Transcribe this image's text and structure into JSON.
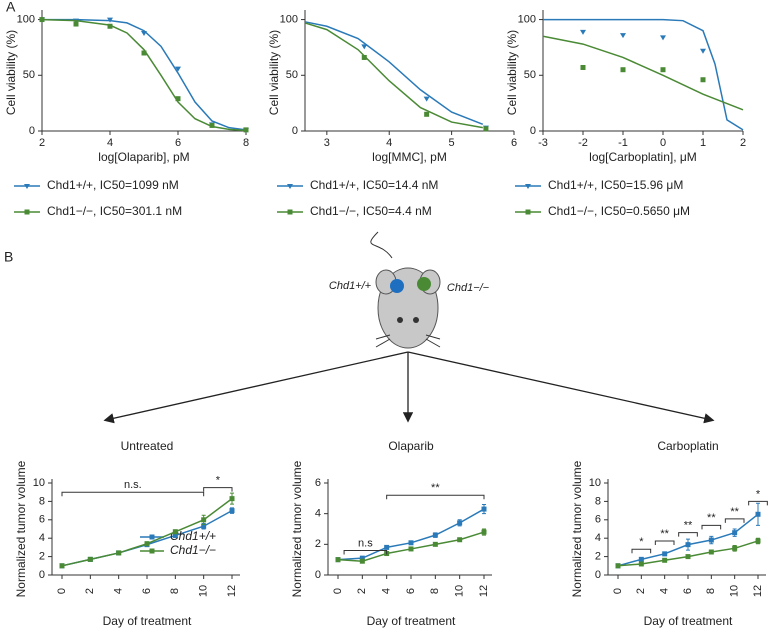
{
  "panels": [
    "A",
    "B"
  ],
  "mouse": {
    "left_label": "Chd1+/+",
    "right_label": "Chd1−/−"
  },
  "chart_data": [
    {
      "type": "line",
      "x_label": "log[Olaparib], pM",
      "y_label": "Cell viability (%)",
      "xlim": [
        2,
        8
      ],
      "xticks": [
        2,
        4,
        6,
        8
      ],
      "ylim": [
        0,
        105
      ],
      "yticks": [
        0,
        50,
        100
      ],
      "legend": "below",
      "series": [
        {
          "name": "Chd1+/+, IC50=1099 nM",
          "color": "#2a7ab9",
          "marker": "triangle",
          "x": [
            2,
            3,
            4,
            5,
            6,
            7,
            8
          ],
          "values": [
            100,
            99,
            100,
            88,
            56,
            6,
            1
          ],
          "fit": {
            "x": [
              2,
              3,
              4,
              4.5,
              5,
              5.5,
              6,
              6.5,
              7,
              7.5,
              8
            ],
            "values": [
              100,
              100,
              99,
              97,
              90,
              76,
              52,
              26,
              9,
              3,
              1
            ]
          }
        },
        {
          "name": "Chd1−/−, IC50=301.1 nM",
          "color": "#4a8a35",
          "marker": "square",
          "x": [
            2,
            3,
            4,
            5,
            6,
            7,
            8
          ],
          "values": [
            100,
            96,
            94,
            70,
            29,
            5,
            1
          ],
          "fit": {
            "x": [
              2,
              3,
              4,
              4.5,
              5,
              5.5,
              6,
              6.5,
              7,
              7.5,
              8
            ],
            "values": [
              100,
              99,
              95,
              88,
              73,
              50,
              26,
              11,
              4,
              1.5,
              0.5
            ]
          }
        }
      ]
    },
    {
      "type": "line",
      "x_label": "log[MMC], pM",
      "y_label": "Cell viability (%)",
      "xlim": [
        2.65,
        6
      ],
      "xticks": [
        3,
        4,
        5,
        6
      ],
      "ylim": [
        0,
        105
      ],
      "yticks": [
        0,
        50,
        100
      ],
      "legend": "below",
      "series": [
        {
          "name": "Chd1+/+, IC50=14.4 nM",
          "color": "#2a7ab9",
          "marker": "triangle",
          "x": [
            3.6,
            4.6,
            5.55
          ],
          "values": [
            76,
            29,
            3
          ],
          "fit": {
            "x": [
              2.65,
              3,
              3.5,
              4,
              4.5,
              5,
              5.5
            ],
            "values": [
              98,
              94,
              83,
              62,
              37,
              17,
              6
            ]
          }
        },
        {
          "name": "Chd1−/−, IC50=4.4 nM",
          "color": "#4a8a35",
          "marker": "square",
          "x": [
            3.6,
            4.6,
            5.55
          ],
          "values": [
            66,
            15,
            2
          ],
          "fit": {
            "x": [
              2.65,
              3,
              3.5,
              4,
              4.5,
              5,
              5.5
            ],
            "values": [
              97,
              91,
              73,
              45,
              21,
              8,
              3
            ]
          }
        }
      ]
    },
    {
      "type": "line",
      "x_label": "log[Carboplatin], μM",
      "y_label": "Cell viability (%)",
      "xlim": [
        -3,
        2
      ],
      "xticks": [
        -3,
        -2,
        -1,
        0,
        1,
        2
      ],
      "ylim": [
        0,
        105
      ],
      "yticks": [
        0,
        50,
        100
      ],
      "legend": "below",
      "series": [
        {
          "name": "Chd1+/+, IC50=15.96 μM",
          "color": "#2a7ab9",
          "marker": "triangle",
          "x": [
            -2,
            -1,
            0,
            1
          ],
          "values": [
            89,
            86,
            84,
            72
          ],
          "fit": {
            "x": [
              -3,
              -2,
              -1,
              0,
              0.5,
              1,
              1.3,
              1.6,
              2
            ],
            "values": [
              100,
              100,
              100,
              100,
              99,
              90,
              60,
              10,
              1
            ]
          }
        },
        {
          "name": "Chd1−/−, IC50=0.5650 μM",
          "color": "#4a8a35",
          "marker": "square",
          "x": [
            -2,
            -1,
            0,
            1
          ],
          "values": [
            57,
            55,
            55,
            46
          ],
          "fit": {
            "x": [
              -3,
              -2,
              -1,
              0,
              1,
              2
            ],
            "values": [
              85,
              78,
              66,
              50,
              33,
              19
            ]
          }
        }
      ]
    },
    {
      "type": "line",
      "title": "Untreated",
      "x_label": "Day of treatment",
      "y_label": "Normalized tumor volume",
      "x": [
        0,
        2,
        4,
        6,
        8,
        10,
        12
      ],
      "xlim": [
        0,
        12
      ],
      "xticks": [
        0,
        2,
        4,
        6,
        8,
        10,
        12
      ],
      "ylim": [
        0,
        10
      ],
      "yticks": [
        0,
        2,
        4,
        6,
        8,
        10
      ],
      "legend": "lower right",
      "series": [
        {
          "name": "Chd1+/+",
          "color": "#2a7ab9",
          "values": [
            1,
            1.7,
            2.4,
            3.3,
            4.3,
            5.3,
            7.0
          ],
          "errors": [
            0.05,
            0.1,
            0.1,
            0.2,
            0.2,
            0.3,
            0.3
          ]
        },
        {
          "name": "Chd1−/−",
          "color": "#4a8a35",
          "values": [
            1,
            1.7,
            2.4,
            3.4,
            4.7,
            6.0,
            8.3
          ],
          "errors": [
            0.05,
            0.1,
            0.1,
            0.2,
            0.2,
            0.5,
            0.6
          ]
        }
      ],
      "annotations": [
        {
          "text": "n.s.",
          "x": [
            0,
            10
          ],
          "y": 9
        },
        {
          "text": "*",
          "x": [
            10,
            12
          ],
          "y": 9.5
        }
      ]
    },
    {
      "type": "line",
      "title": "Olaparib",
      "x_label": "Day of treatment",
      "y_label": "Normalized tumor volume",
      "x": [
        0,
        2,
        4,
        6,
        8,
        10,
        12
      ],
      "xlim": [
        0,
        12
      ],
      "xticks": [
        0,
        2,
        4,
        6,
        8,
        10,
        12
      ],
      "ylim": [
        0,
        6
      ],
      "yticks": [
        0,
        2,
        4,
        6
      ],
      "series": [
        {
          "name": "Chd1+/+",
          "color": "#2a7ab9",
          "values": [
            1,
            1.1,
            1.8,
            2.1,
            2.6,
            3.4,
            4.3
          ],
          "errors": [
            0.05,
            0.1,
            0.1,
            0.1,
            0.15,
            0.2,
            0.3
          ]
        },
        {
          "name": "Chd1−/−",
          "color": "#4a8a35",
          "values": [
            1,
            0.9,
            1.4,
            1.7,
            2.0,
            2.3,
            2.8
          ],
          "errors": [
            0.05,
            0.1,
            0.1,
            0.1,
            0.1,
            0.1,
            0.2
          ]
        }
      ],
      "annotations": [
        {
          "text": "n.s",
          "x": [
            0.5,
            4
          ],
          "y": 1.6
        },
        {
          "text": "**",
          "x": [
            4,
            12
          ],
          "y": 5.2
        }
      ]
    },
    {
      "type": "line",
      "title": "Carboplatin",
      "x_label": "Day of treatment",
      "y_label": "Normalized tumor volume",
      "x": [
        0,
        2,
        4,
        6,
        8,
        10,
        12
      ],
      "xlim": [
        0,
        12
      ],
      "xticks": [
        0,
        2,
        4,
        6,
        8,
        10,
        12
      ],
      "ylim": [
        0,
        10
      ],
      "yticks": [
        0,
        2,
        4,
        6,
        8,
        10
      ],
      "series": [
        {
          "name": "Chd1+/+",
          "color": "#2a7ab9",
          "values": [
            1,
            1.7,
            2.3,
            3.3,
            3.8,
            4.6,
            6.6
          ],
          "errors": [
            0.1,
            0.2,
            0.2,
            0.6,
            0.4,
            0.4,
            1.2
          ]
        },
        {
          "name": "Chd1−/−",
          "color": "#4a8a35",
          "values": [
            1,
            1.2,
            1.6,
            2.0,
            2.5,
            2.9,
            3.7
          ],
          "errors": [
            0.05,
            0.1,
            0.1,
            0.1,
            0.2,
            0.3,
            0.3
          ]
        }
      ],
      "annotations": [
        {
          "text": "*",
          "x": [
            1.2,
            2.8
          ],
          "y": 2.8
        },
        {
          "text": "**",
          "x": [
            3.2,
            4.8
          ],
          "y": 3.7
        },
        {
          "text": "**",
          "x": [
            5.2,
            6.8
          ],
          "y": 4.6
        },
        {
          "text": "**",
          "x": [
            7.2,
            8.8
          ],
          "y": 5.4
        },
        {
          "text": "**",
          "x": [
            9.2,
            10.8
          ],
          "y": 6.1
        },
        {
          "text": "*",
          "x": [
            11.2,
            12.8
          ],
          "y": 8.0
        }
      ]
    }
  ]
}
